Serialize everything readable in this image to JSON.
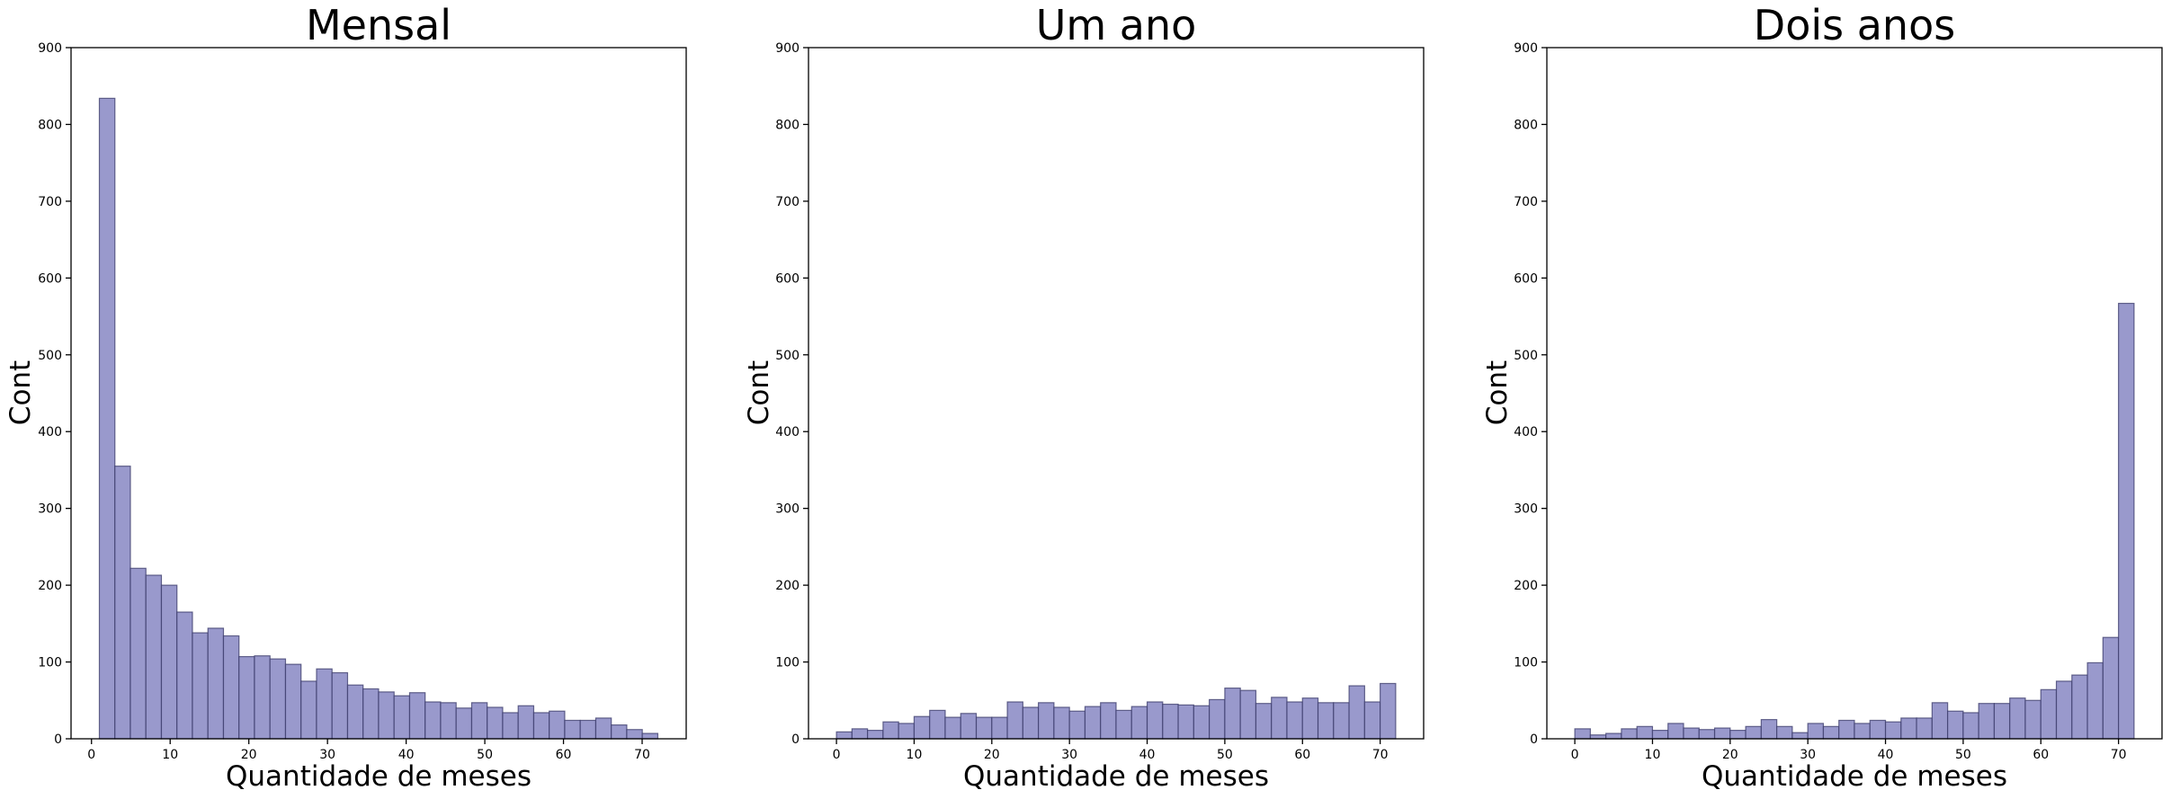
{
  "figure": {
    "panels": [
      {
        "title": "Mensal",
        "xlabel": "Quantidade de meses",
        "ylabel": "Cont"
      },
      {
        "title": "Um ano",
        "xlabel": "Quantidade de meses",
        "ylabel": "Cont"
      },
      {
        "title": "Dois anos",
        "xlabel": "Quantidade de meses",
        "ylabel": "Cont"
      }
    ]
  },
  "chart_data": [
    {
      "type": "bar",
      "title": "Mensal",
      "xlabel": "Quantidade de meses",
      "ylabel": "Cont",
      "xlim": [
        -2.6,
        75.6
      ],
      "ylim": [
        0,
        900
      ],
      "xticks": [
        0,
        10,
        20,
        30,
        40,
        50,
        60,
        70
      ],
      "yticks": [
        0,
        100,
        200,
        300,
        400,
        500,
        600,
        700,
        800,
        900
      ],
      "bar_color": "#9999cc",
      "bins": {
        "start": 1.0,
        "width": 1.972,
        "counts": [
          834,
          355,
          222,
          213,
          200,
          165,
          138,
          144,
          134,
          107,
          108,
          104,
          97,
          75,
          91,
          86,
          70,
          65,
          61,
          56,
          60,
          48,
          47,
          40,
          47,
          41,
          34,
          43,
          34,
          36,
          24,
          24,
          27,
          18,
          12,
          7
        ]
      }
    },
    {
      "type": "bar",
      "title": "Um ano",
      "xlabel": "Quantidade de meses",
      "ylabel": "Cont",
      "xlim": [
        -3.6,
        75.6
      ],
      "ylim": [
        0,
        900
      ],
      "xticks": [
        0,
        10,
        20,
        30,
        40,
        50,
        60,
        70
      ],
      "yticks": [
        0,
        100,
        200,
        300,
        400,
        500,
        600,
        700,
        800,
        900
      ],
      "bar_color": "#9999cc",
      "bins": {
        "start": 0.0,
        "width": 2.0,
        "counts": [
          9,
          13,
          11,
          22,
          20,
          29,
          37,
          28,
          33,
          28,
          28,
          48,
          41,
          47,
          41,
          36,
          42,
          47,
          37,
          42,
          48,
          45,
          44,
          43,
          51,
          66,
          63,
          46,
          54,
          48,
          53,
          47,
          47,
          69,
          48,
          72
        ]
      }
    },
    {
      "type": "bar",
      "title": "Dois anos",
      "xlabel": "Quantidade de meses",
      "ylabel": "Cont",
      "xlim": [
        -3.6,
        75.6
      ],
      "ylim": [
        0,
        900
      ],
      "xticks": [
        0,
        10,
        20,
        30,
        40,
        50,
        60,
        70
      ],
      "yticks": [
        0,
        100,
        200,
        300,
        400,
        500,
        600,
        700,
        800,
        900
      ],
      "bar_color": "#9999cc",
      "bins": {
        "start": 0.0,
        "width": 2.0,
        "counts": [
          13,
          5,
          7,
          13,
          16,
          11,
          20,
          14,
          12,
          14,
          11,
          16,
          25,
          16,
          8,
          20,
          16,
          24,
          20,
          24,
          22,
          27,
          27,
          47,
          36,
          34,
          46,
          46,
          53,
          50,
          64,
          75,
          83,
          99,
          132,
          567
        ]
      }
    }
  ]
}
